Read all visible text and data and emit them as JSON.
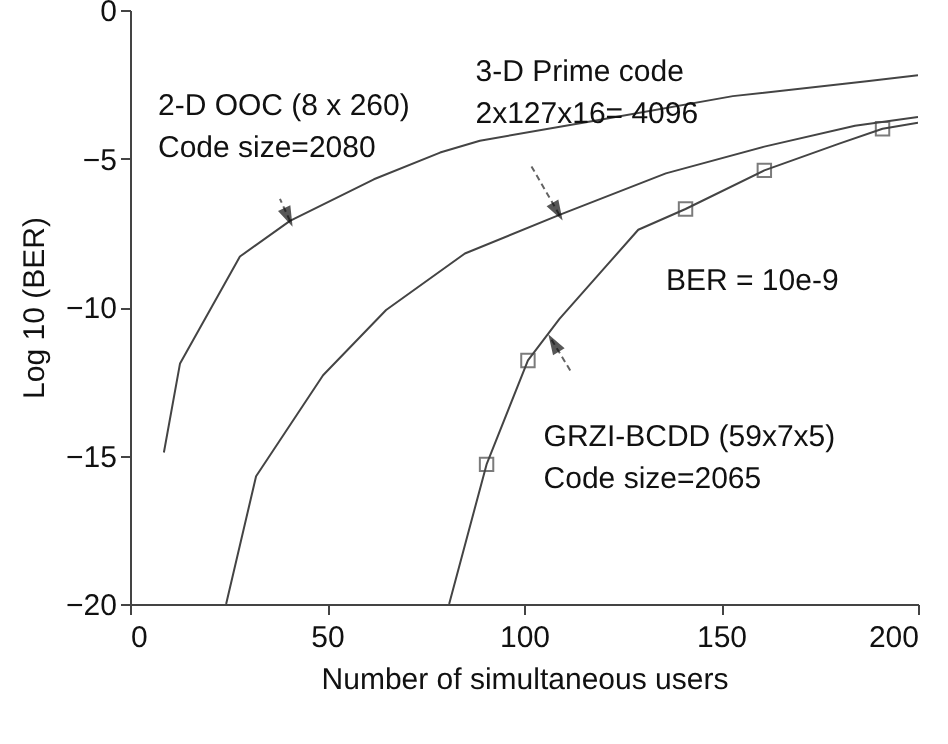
{
  "chart_data": {
    "type": "line",
    "xlabel": "Number of simultaneous users",
    "ylabel": "Log 10 (BER)",
    "xlim": [
      0,
      200
    ],
    "xticks": [
      0,
      50,
      100,
      150,
      200
    ],
    "ylim": [
      -20,
      0
    ],
    "yticks": [
      -20,
      -15,
      -10,
      -5,
      0
    ],
    "grid": false,
    "series": [
      {
        "color": "#444444",
        "x": [
          8.6,
          12.7,
          27.9,
          40.6,
          61.9,
          78.7,
          88.8,
          119,
          153,
          187,
          200
        ],
        "values": [
          -14.9,
          -11.9,
          -8.3,
          -7.1,
          -5.7,
          -4.8,
          -4.4,
          -3.7,
          -2.9,
          -2.4,
          -2.2
        ]
      },
      {
        "color": "#444444",
        "x": [
          24.4,
          32,
          49,
          65,
          85,
          109,
          136,
          161,
          184,
          200
        ],
        "values": [
          -20,
          -15.7,
          -12.3,
          -10.1,
          -8.2,
          -6.9,
          -5.5,
          -4.6,
          -3.9,
          -3.6
        ]
      },
      {
        "color": "#444444",
        "x": [
          81,
          90.5,
          101,
          109,
          121,
          129,
          141,
          161,
          180,
          191,
          200
        ],
        "values": [
          -20,
          -15.3,
          -11.8,
          -10.4,
          -8.6,
          -7.4,
          -6.7,
          -5.4,
          -4.5,
          -4.0,
          -3.8
        ]
      },
      {
        "type": "scatter",
        "marker": "square",
        "color": "#444444",
        "x": [
          90.5,
          101,
          141,
          161,
          191
        ],
        "values": [
          -15.3,
          -11.8,
          -6.7,
          -5.4,
          -4.0
        ]
      }
    ],
    "annotations": [
      {
        "text": "2-D OOC (8 x 260)\nCode size=2080",
        "x": 40.6,
        "y": -7.1
      },
      {
        "text": "3-D Prime code\n2x127x16= 4096",
        "x": 109,
        "y": -6.9
      },
      "BER = 10e-9",
      {
        "text": "GRZI-BCDD (59x7x5)\nCode size=2065",
        "x": 107,
        "y": -11.1
      }
    ]
  }
}
